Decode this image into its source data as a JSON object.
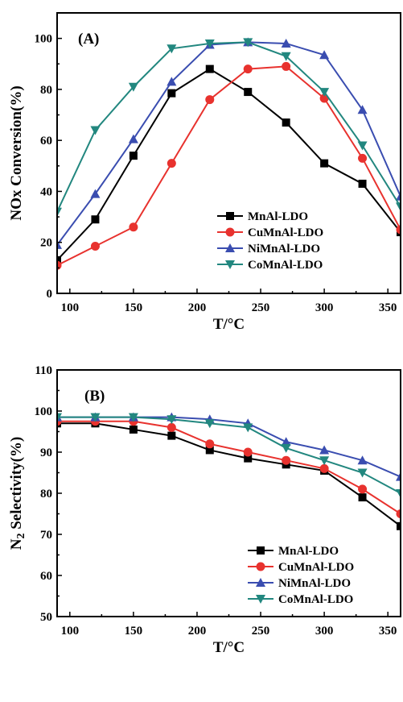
{
  "chart_data": [
    {
      "type": "line",
      "panel_label": "(A)",
      "xlabel": "T/°C",
      "ylabel": "NOx Conversion(%)",
      "xlim": [
        90,
        360
      ],
      "ylim": [
        0,
        110
      ],
      "xticks": [
        100,
        150,
        200,
        250,
        300,
        350
      ],
      "yticks": [
        0,
        20,
        40,
        60,
        80,
        100
      ],
      "legend_position": "bottom-right",
      "x": [
        90,
        120,
        150,
        180,
        210,
        240,
        270,
        300,
        330,
        360
      ],
      "series": [
        {
          "name": "MnAl-LDO",
          "color": "#000000",
          "marker": "square",
          "values": [
            13,
            29,
            54,
            78.5,
            88,
            79,
            67,
            51,
            43,
            24
          ]
        },
        {
          "name": "CuMnAl-LDO",
          "color": "#e8322e",
          "marker": "circle",
          "values": [
            11,
            18.5,
            26,
            51,
            76,
            88,
            89,
            76.5,
            53,
            25
          ]
        },
        {
          "name": "NiMnAl-LDO",
          "color": "#3a4db0",
          "marker": "triangle-up",
          "values": [
            19,
            39,
            60.5,
            83,
            97.5,
            98.5,
            98,
            93.5,
            72,
            38
          ]
        },
        {
          "name": "CoMnAl-LDO",
          "color": "#22877f",
          "marker": "triangle-down",
          "values": [
            32,
            64,
            81,
            96,
            98,
            98.5,
            93,
            79,
            58,
            34
          ]
        }
      ]
    },
    {
      "type": "line",
      "panel_label": "(B)",
      "xlabel": "T/°C",
      "ylabel": "N2 Selectivity(%)",
      "xlim": [
        90,
        360
      ],
      "ylim": [
        50,
        110
      ],
      "xticks": [
        100,
        150,
        200,
        250,
        300,
        350
      ],
      "yticks": [
        50,
        60,
        70,
        80,
        90,
        100,
        110
      ],
      "legend_position": "bottom-right",
      "x": [
        90,
        120,
        150,
        180,
        210,
        240,
        270,
        300,
        330,
        360
      ],
      "series": [
        {
          "name": "MnAl-LDO",
          "color": "#000000",
          "marker": "square",
          "values": [
            97,
            97,
            95.5,
            94,
            90.5,
            88.5,
            87,
            85.5,
            79,
            72
          ]
        },
        {
          "name": "CuMnAl-LDO",
          "color": "#e8322e",
          "marker": "circle",
          "values": [
            97.5,
            97.5,
            97.5,
            96,
            92,
            90,
            88,
            86,
            81,
            75
          ]
        },
        {
          "name": "NiMnAl-LDO",
          "color": "#3a4db0",
          "marker": "triangle-up",
          "values": [
            98.5,
            98.5,
            98.5,
            98.5,
            98,
            97,
            92.5,
            90.5,
            88,
            84
          ]
        },
        {
          "name": "CoMnAl-LDO",
          "color": "#22877f",
          "marker": "triangle-down",
          "values": [
            98.5,
            98.5,
            98.5,
            98,
            97,
            96,
            91,
            88,
            85,
            80
          ]
        }
      ]
    }
  ]
}
